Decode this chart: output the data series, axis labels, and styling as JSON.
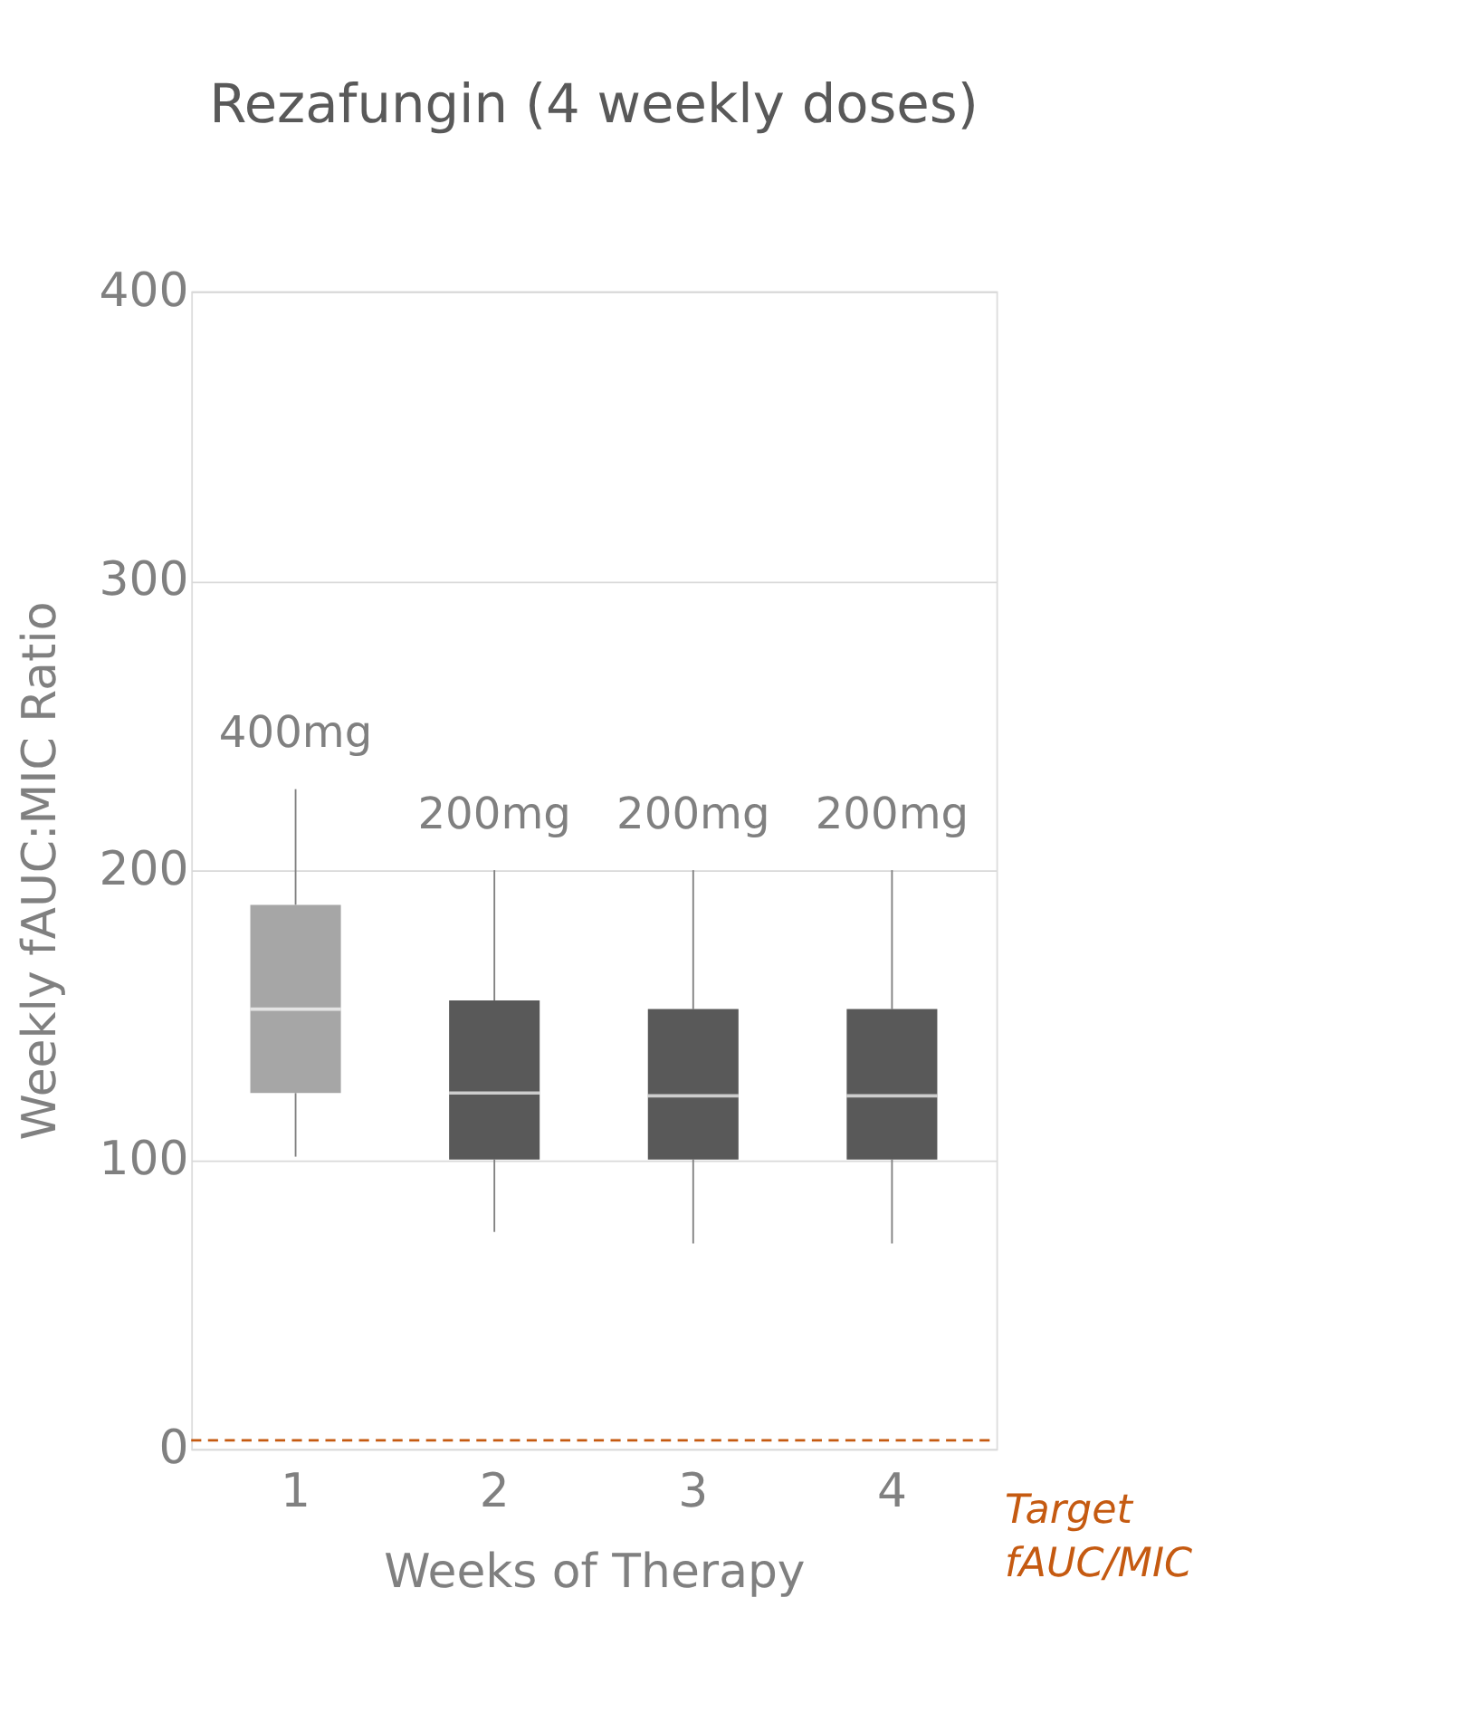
{
  "chart_data": {
    "type": "box",
    "title": "Rezafungin (4 weekly doses)",
    "xlabel": "Weeks of Therapy",
    "ylabel": "Weekly fAUC:MIC Ratio",
    "categories": [
      "1",
      "2",
      "3",
      "4"
    ],
    "boxes": [
      {
        "low": 101,
        "q1": 123,
        "median": 152,
        "q3": 188,
        "high": 228
      },
      {
        "low": 75,
        "q1": 100,
        "median": 123,
        "q3": 155,
        "high": 200
      },
      {
        "low": 71,
        "q1": 100,
        "median": 122,
        "q3": 152,
        "high": 200
      },
      {
        "low": 71,
        "q1": 100,
        "median": 122,
        "q3": 152,
        "high": 200
      }
    ],
    "colors": [
      "#a6a6a6",
      "#595959",
      "#595959",
      "#595959"
    ],
    "value_labels": [
      "400mg",
      "200mg",
      "200mg",
      "200mg"
    ],
    "ylim": [
      0,
      400
    ],
    "yticks": [
      0,
      100,
      200,
      300,
      400
    ],
    "grid": "y",
    "ref_lines": [
      {
        "axis": "y",
        "value": 3,
        "label": "Target fAUC/MIC",
        "color": "#c55a11",
        "line_style": "dashed"
      }
    ]
  }
}
